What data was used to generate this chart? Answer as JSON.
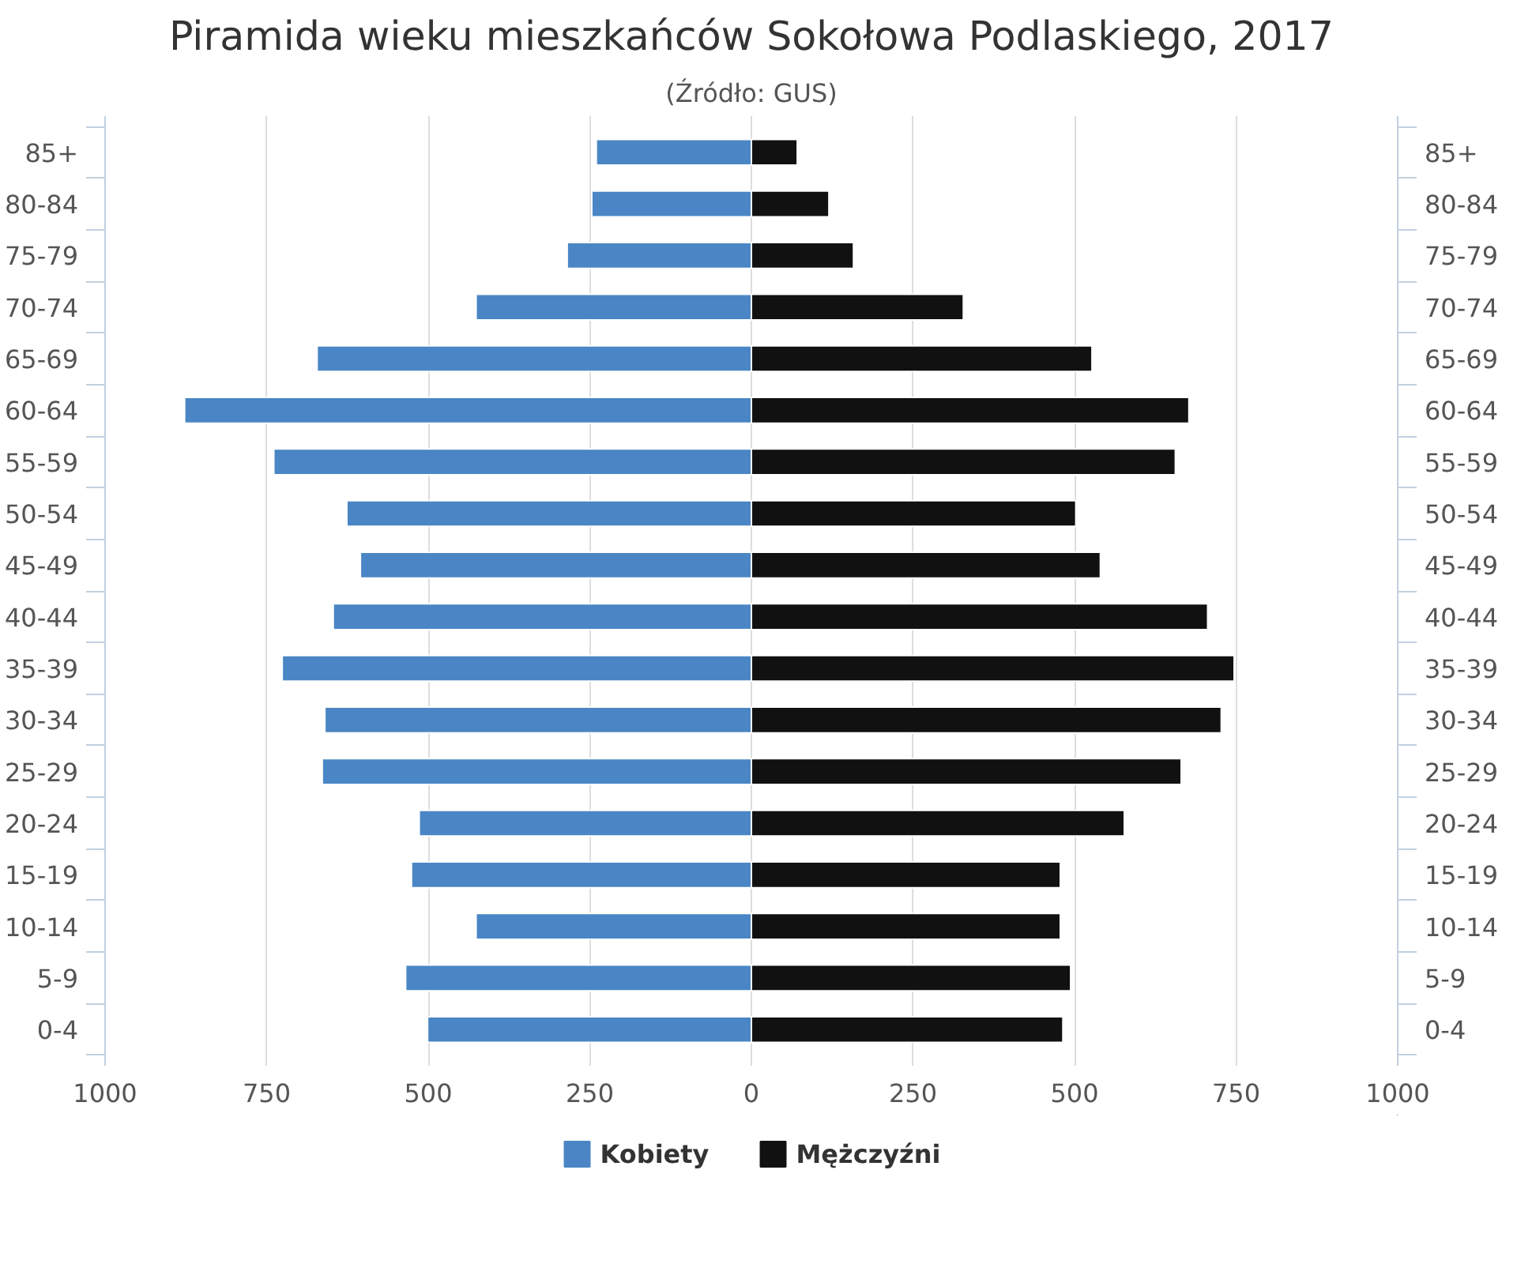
{
  "chart_data": {
    "type": "bar",
    "orientation": "horizontal",
    "title": "Piramida wieku mieszkańców Sokołowa Podlaskiego, 2017",
    "subtitle": "(Źródło: GUS)",
    "categories": [
      "85+",
      "80-84",
      "75-79",
      "70-74",
      "65-69",
      "60-64",
      "55-59",
      "50-54",
      "45-49",
      "40-44",
      "35-39",
      "30-34",
      "25-29",
      "20-24",
      "15-19",
      "10-14",
      "5-9",
      "0-4"
    ],
    "series": [
      {
        "name": "Kobiety",
        "color": "#4a86c5",
        "values": [
          -240,
          -247,
          -285,
          -426,
          -672,
          -877,
          -739,
          -626,
          -605,
          -647,
          -726,
          -660,
          -664,
          -514,
          -526,
          -426,
          -535,
          -501
        ]
      },
      {
        "name": "Mężczyźni",
        "color": "#111111",
        "values": [
          71,
          120,
          158,
          328,
          527,
          677,
          656,
          502,
          540,
          706,
          747,
          727,
          665,
          577,
          478,
          478,
          494,
          482
        ]
      }
    ],
    "xlim": [
      -1000,
      1000
    ],
    "xticks": [
      {
        "value": -1000,
        "label": "1000"
      },
      {
        "value": -750,
        "label": "750"
      },
      {
        "value": -500,
        "label": "500"
      },
      {
        "value": -250,
        "label": "250"
      },
      0,
      250,
      500,
      750,
      1000
    ],
    "grid": "x",
    "legend": "bottom",
    "stacked": true
  }
}
